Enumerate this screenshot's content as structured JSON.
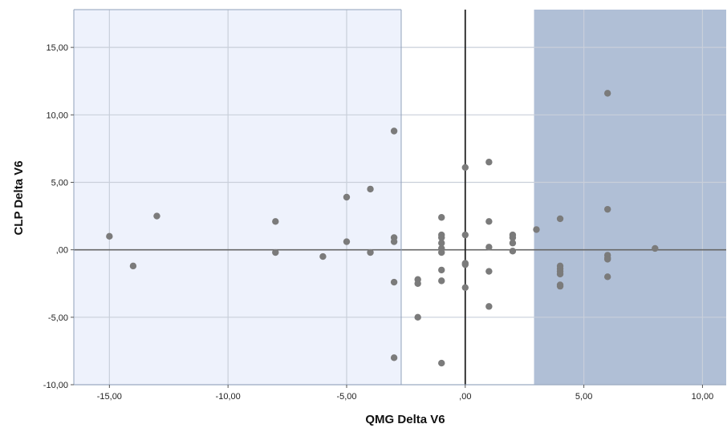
{
  "chart_data": {
    "type": "scatter",
    "title": "",
    "xlabel": "QMG Delta V6",
    "ylabel": "CLP Delta V6",
    "xlim": [
      -16.5,
      11.0
    ],
    "ylim": [
      -10.0,
      17.8
    ],
    "xticks": [
      -15,
      -10,
      -5,
      0,
      5,
      10
    ],
    "xtick_labels": [
      "-15,00",
      "-10,00",
      "-5,00",
      ",00",
      "5,00",
      "10,00"
    ],
    "yticks": [
      -10,
      -5,
      0,
      5,
      10,
      15
    ],
    "ytick_labels": [
      "-10,00",
      "-5,00",
      ",00",
      "5,00",
      "10,00",
      "15,00"
    ],
    "grid": true,
    "regions": [
      {
        "x_from": -16.5,
        "x_to": -2.7,
        "color": "#eef2fc"
      },
      {
        "x_from": 2.9,
        "x_to": 11.0,
        "color": "#b0bfd6"
      }
    ],
    "reference_lines": {
      "x": 0,
      "y": 0
    },
    "colors": {
      "point": "#7b7b7b",
      "frame": "#8fa0ba",
      "grid": "#c9cfda",
      "ref_line_x": "#222222",
      "ref_line_y": "#666666"
    },
    "series": [
      {
        "points": [
          [
            -15,
            1.0
          ],
          [
            -14,
            -1.2
          ],
          [
            -13,
            2.5
          ],
          [
            -8,
            2.1
          ],
          [
            -8,
            -0.2
          ],
          [
            -6,
            -0.5
          ],
          [
            -5,
            3.9
          ],
          [
            -5,
            0.6
          ],
          [
            -4,
            4.5
          ],
          [
            -4,
            -0.2
          ],
          [
            -3,
            8.8
          ],
          [
            -3,
            0.9
          ],
          [
            -3,
            0.6
          ],
          [
            -3,
            -2.4
          ],
          [
            -3,
            -8.0
          ],
          [
            -2,
            -2.2
          ],
          [
            -2,
            -2.5
          ],
          [
            -2,
            -5.0
          ],
          [
            -1,
            2.4
          ],
          [
            -1,
            1.1
          ],
          [
            -1,
            0.9
          ],
          [
            -1,
            0.5
          ],
          [
            -1,
            0.1
          ],
          [
            -1,
            -0.2
          ],
          [
            -1,
            -1.5
          ],
          [
            -1,
            -2.3
          ],
          [
            -1,
            -8.4
          ],
          [
            0,
            6.1
          ],
          [
            0,
            1.1
          ],
          [
            0,
            -1.0
          ],
          [
            0,
            -1.1
          ],
          [
            0,
            -2.8
          ],
          [
            1,
            6.5
          ],
          [
            1,
            2.1
          ],
          [
            1,
            0.2
          ],
          [
            1,
            -1.6
          ],
          [
            1,
            -4.2
          ],
          [
            2,
            1.1
          ],
          [
            2,
            0.9
          ],
          [
            2,
            0.5
          ],
          [
            2,
            -0.1
          ],
          [
            3,
            1.5
          ],
          [
            4,
            2.3
          ],
          [
            4,
            -1.2
          ],
          [
            4,
            -1.4
          ],
          [
            4,
            -1.6
          ],
          [
            4,
            -1.8
          ],
          [
            4,
            -2.6
          ],
          [
            4,
            -2.7
          ],
          [
            6,
            11.6
          ],
          [
            6,
            3.0
          ],
          [
            6,
            -0.4
          ],
          [
            6,
            -0.6
          ],
          [
            6,
            -0.7
          ],
          [
            6,
            -2.0
          ],
          [
            8,
            0.1
          ]
        ]
      }
    ]
  }
}
